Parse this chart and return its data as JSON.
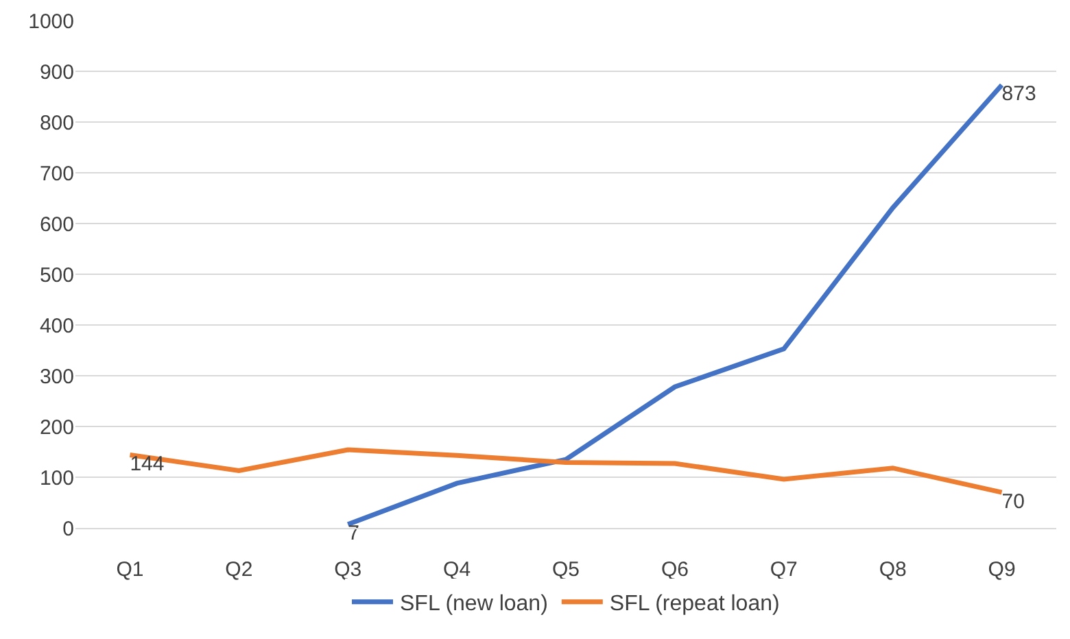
{
  "chart_data": {
    "type": "line",
    "categories": [
      "Q1",
      "Q2",
      "Q3",
      "Q4",
      "Q5",
      "Q6",
      "Q7",
      "Q8",
      "Q9"
    ],
    "series": [
      {
        "name": "SFL (new loan)",
        "color": "#4472c4",
        "values": [
          null,
          null,
          7,
          88,
          135,
          278,
          353,
          631,
          873
        ],
        "value_labels": [
          null,
          null,
          "7",
          null,
          null,
          null,
          null,
          null,
          "873"
        ]
      },
      {
        "name": "SFL (repeat loan)",
        "color": "#ed7d31",
        "values": [
          144,
          113,
          154,
          143,
          129,
          127,
          96,
          118,
          70
        ],
        "value_labels": [
          "144",
          null,
          null,
          null,
          null,
          null,
          null,
          null,
          "70"
        ]
      }
    ],
    "ylim": [
      0,
      1000
    ],
    "yticks": [
      0,
      100,
      200,
      300,
      400,
      500,
      600,
      700,
      800,
      900,
      1000
    ],
    "grid": "y",
    "legend": "bottom",
    "marker": "none",
    "line_style": "solid"
  }
}
